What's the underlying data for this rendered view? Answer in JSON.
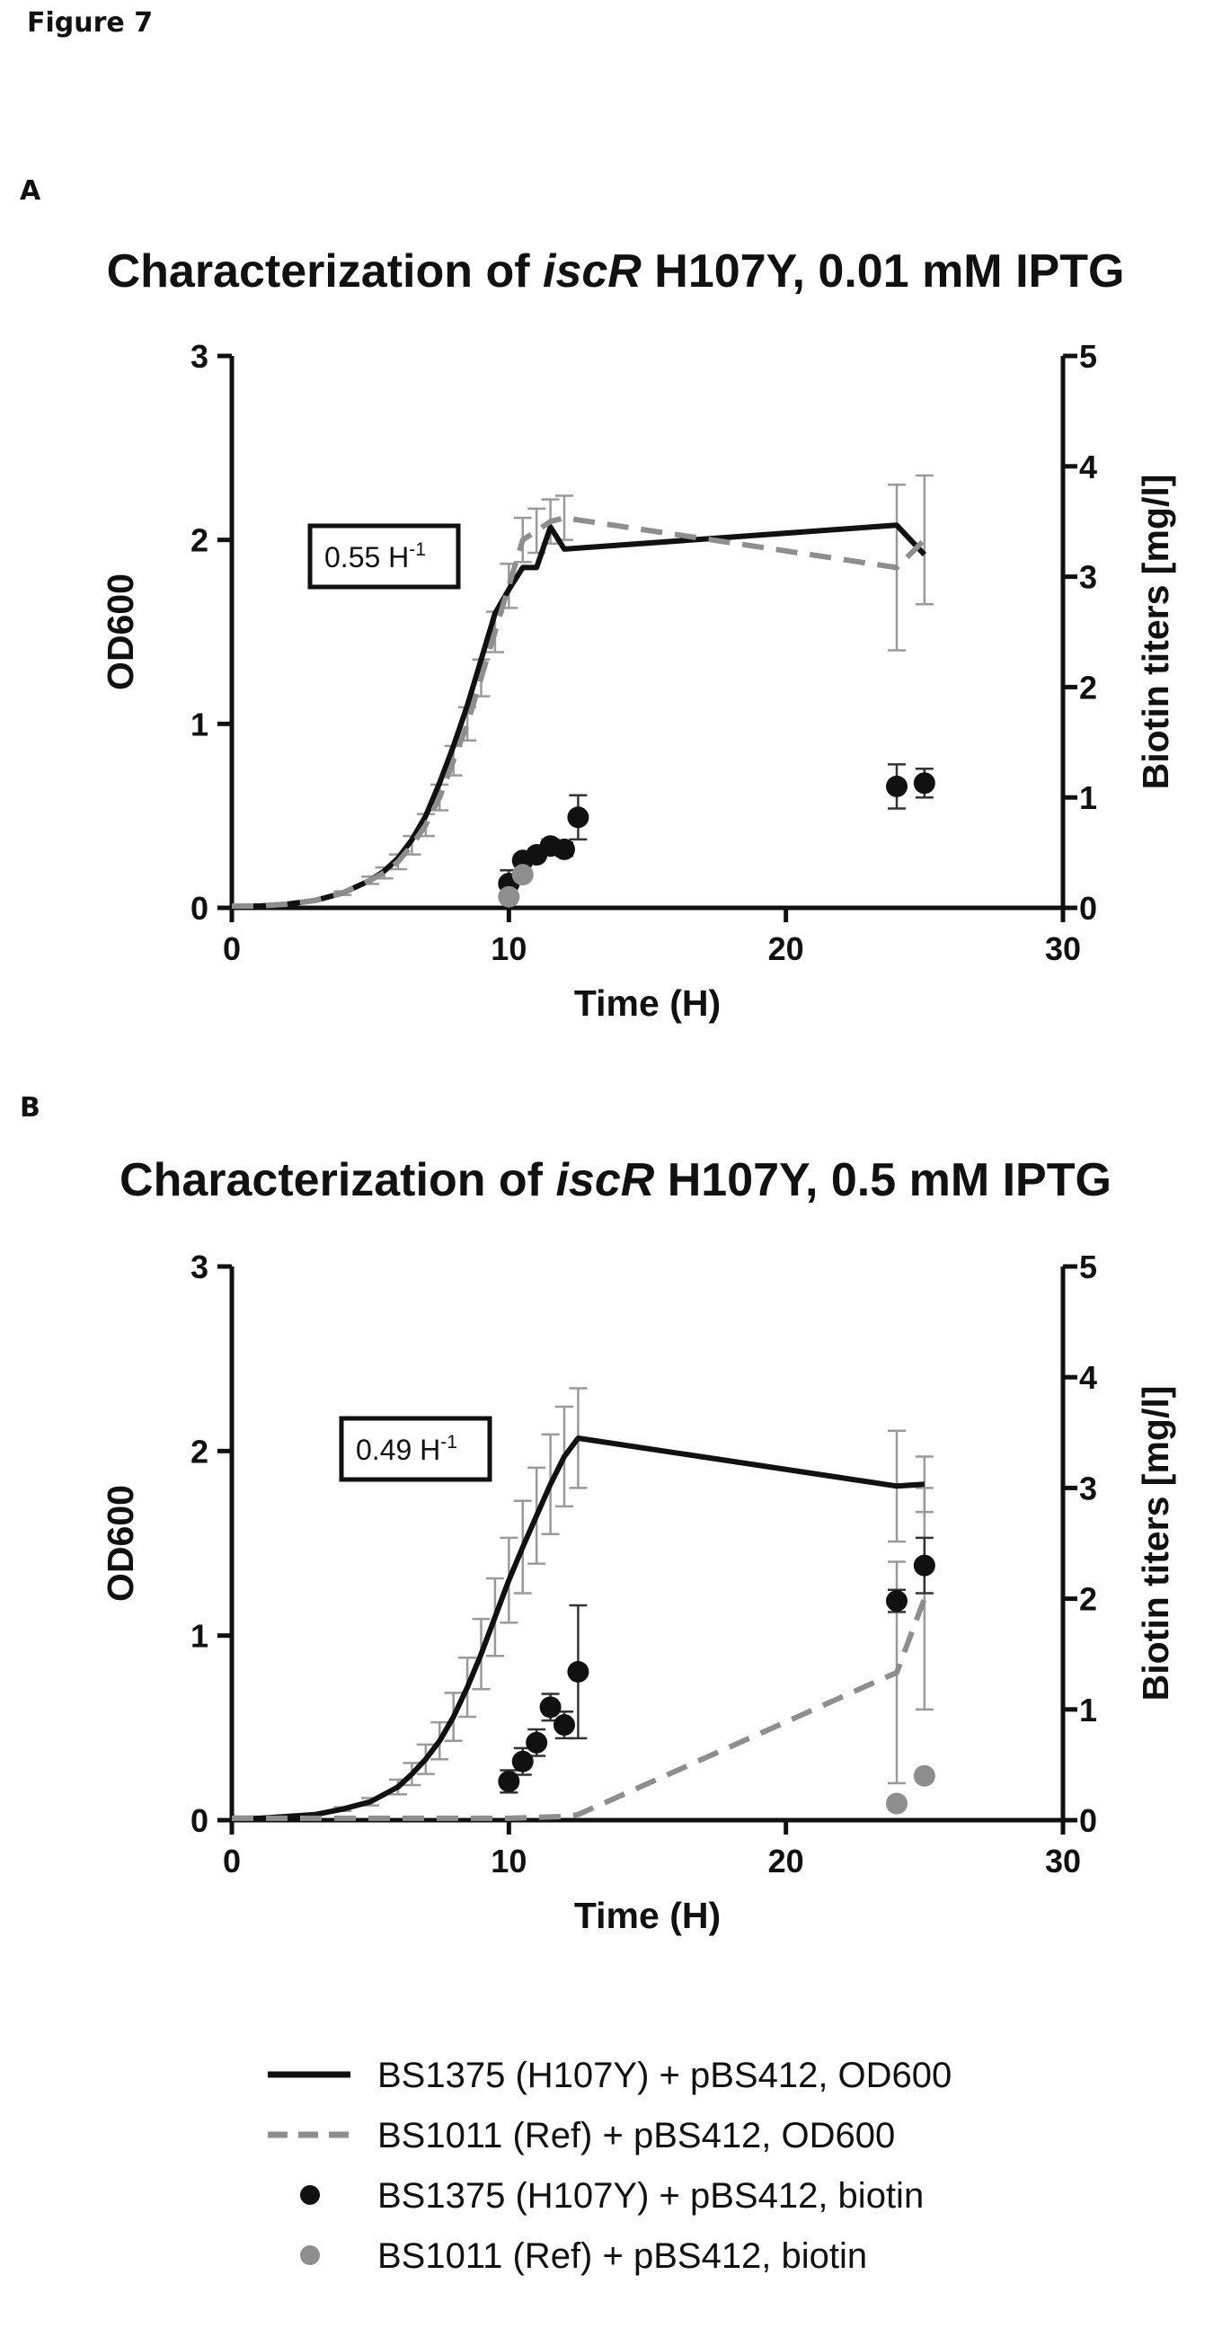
{
  "figure_label": "Figure 7",
  "legend": [
    {
      "label": "BS1375 (H107Y) + pBS412, OD600",
      "style": "solid-line",
      "color": "#111111"
    },
    {
      "label": "BS1011 (Ref) + pBS412, OD600",
      "style": "dashed-line",
      "color": "#8e8e8e"
    },
    {
      "label": "BS1375 (H107Y) + pBS412, biotin",
      "style": "dot",
      "color": "#111111"
    },
    {
      "label": "BS1011 (Ref) + pBS412, biotin",
      "style": "dot",
      "color": "#8e8e8e"
    }
  ],
  "chart_data": [
    {
      "panel": "A",
      "type": "line",
      "title_prefix": "Characterization of ",
      "title_italic": "iscR",
      "title_suffix": " H107Y, 0.01 mM IPTG",
      "xlabel": "Time (H)",
      "ylabel": "OD600",
      "y2label": "Biotin titers [mg/l]",
      "xlim": [
        0,
        30
      ],
      "ylim": [
        0,
        3
      ],
      "y2lim": [
        0,
        5
      ],
      "xticks": [
        0,
        10,
        20,
        30
      ],
      "yticks": [
        0,
        1,
        2,
        3
      ],
      "y2ticks": [
        0,
        1,
        2,
        3,
        4,
        5
      ],
      "annotation": {
        "value": "0.55 H",
        "sup": "-1"
      },
      "series": [
        {
          "name": "BS1375 (H107Y) + pBS412, OD600",
          "axis": "left",
          "style": "solid-line",
          "x": [
            0,
            1,
            2,
            3,
            4,
            5,
            5.5,
            6,
            6.5,
            7,
            7.5,
            8,
            8.5,
            9,
            9.5,
            10,
            10.5,
            11,
            11.5,
            12,
            24,
            25
          ],
          "y": [
            0.01,
            0.01,
            0.02,
            0.04,
            0.08,
            0.15,
            0.2,
            0.27,
            0.37,
            0.5,
            0.68,
            0.88,
            1.1,
            1.35,
            1.6,
            1.73,
            1.85,
            1.85,
            2.07,
            1.95,
            2.08,
            1.92
          ]
        },
        {
          "name": "BS1011 (Ref) + pBS412, OD600",
          "axis": "left",
          "style": "dashed-line",
          "x": [
            0,
            1,
            2,
            3,
            4,
            5,
            5.5,
            6,
            6.5,
            7,
            7.5,
            8,
            8.5,
            9,
            9.5,
            10,
            10.5,
            11,
            11.5,
            12,
            24,
            25
          ],
          "y": [
            0.01,
            0.01,
            0.02,
            0.04,
            0.08,
            0.15,
            0.19,
            0.25,
            0.34,
            0.45,
            0.6,
            0.8,
            1.0,
            1.25,
            1.5,
            1.75,
            2.0,
            2.05,
            2.1,
            2.12,
            1.85,
            2.0
          ],
          "err": [
            0,
            0,
            0,
            0,
            0.01,
            0.02,
            0.03,
            0.04,
            0.05,
            0.06,
            0.07,
            0.08,
            0.09,
            0.1,
            0.11,
            0.12,
            0.12,
            0.12,
            0.12,
            0.12,
            0.45,
            0.35
          ]
        },
        {
          "name": "BS1375 (H107Y) + pBS412, biotin",
          "axis": "right",
          "style": "dot",
          "x": [
            10,
            10.5,
            11,
            11.5,
            12,
            12.5,
            24,
            25
          ],
          "y": [
            0.22,
            0.43,
            0.48,
            0.56,
            0.53,
            0.82,
            1.1,
            1.13
          ],
          "err": [
            0.12,
            0.05,
            0.05,
            0.06,
            0.06,
            0.2,
            0.2,
            0.13
          ]
        },
        {
          "name": "BS1011 (Ref) + pBS412, biotin",
          "axis": "right",
          "style": "dot",
          "x": [
            10,
            10.5
          ],
          "y": [
            0.1,
            0.3
          ],
          "err": [
            0,
            0
          ]
        }
      ]
    },
    {
      "panel": "B",
      "type": "line",
      "title_prefix": "Characterization of ",
      "title_italic": "iscR",
      "title_suffix": " H107Y, 0.5 mM IPTG",
      "xlabel": "Time (H)",
      "ylabel": "OD600",
      "y2label": "Biotin titers [mg/l]",
      "xlim": [
        0,
        30
      ],
      "ylim": [
        0,
        3
      ],
      "y2lim": [
        0,
        5
      ],
      "xticks": [
        0,
        10,
        20,
        30
      ],
      "yticks": [
        0,
        1,
        2,
        3
      ],
      "y2ticks": [
        0,
        1,
        2,
        3,
        4,
        5
      ],
      "annotation": {
        "value": "0.49 H",
        "sup": "-1"
      },
      "series": [
        {
          "name": "BS1375 (H107Y) + pBS412, OD600",
          "axis": "left",
          "style": "solid-line",
          "x": [
            0,
            1,
            2,
            3,
            4,
            5,
            6,
            6.5,
            7,
            7.5,
            8,
            8.5,
            9,
            9.5,
            10,
            10.5,
            11,
            11.5,
            12,
            12.5,
            24,
            25
          ],
          "y": [
            0.01,
            0.01,
            0.02,
            0.03,
            0.06,
            0.1,
            0.18,
            0.25,
            0.33,
            0.43,
            0.56,
            0.72,
            0.9,
            1.1,
            1.3,
            1.48,
            1.65,
            1.82,
            1.97,
            2.07,
            1.81,
            1.82
          ],
          "err": [
            0,
            0,
            0,
            0,
            0.01,
            0.02,
            0.04,
            0.06,
            0.08,
            0.1,
            0.13,
            0.16,
            0.19,
            0.21,
            0.23,
            0.25,
            0.26,
            0.27,
            0.27,
            0.27,
            0.3,
            0.15
          ]
        },
        {
          "name": "BS1011 (Ref) + pBS412, OD600",
          "axis": "left",
          "style": "dashed-line",
          "x": [
            0,
            2,
            4,
            6,
            8,
            10,
            12,
            12.5,
            24,
            25
          ],
          "y": [
            0.01,
            0.01,
            0.01,
            0.01,
            0.01,
            0.01,
            0.02,
            0.03,
            0.8,
            1.2
          ],
          "err": [
            0,
            0,
            0,
            0,
            0,
            0,
            0,
            0,
            0.6,
            0.6
          ]
        },
        {
          "name": "BS1375 (H107Y) + pBS412, biotin",
          "axis": "right",
          "style": "dot",
          "x": [
            10,
            10.5,
            11,
            11.5,
            12,
            12.5,
            24,
            25
          ],
          "y": [
            0.35,
            0.53,
            0.7,
            1.02,
            0.86,
            1.34,
            1.98,
            2.3
          ],
          "err": [
            0.1,
            0.12,
            0.12,
            0.12,
            0.12,
            0.6,
            0.1,
            0.25
          ]
        },
        {
          "name": "BS1011 (Ref) + pBS412, biotin",
          "axis": "right",
          "style": "dot",
          "x": [
            24,
            25
          ],
          "y": [
            0.15,
            0.4
          ],
          "err": [
            0.05,
            0.05
          ]
        }
      ]
    }
  ]
}
